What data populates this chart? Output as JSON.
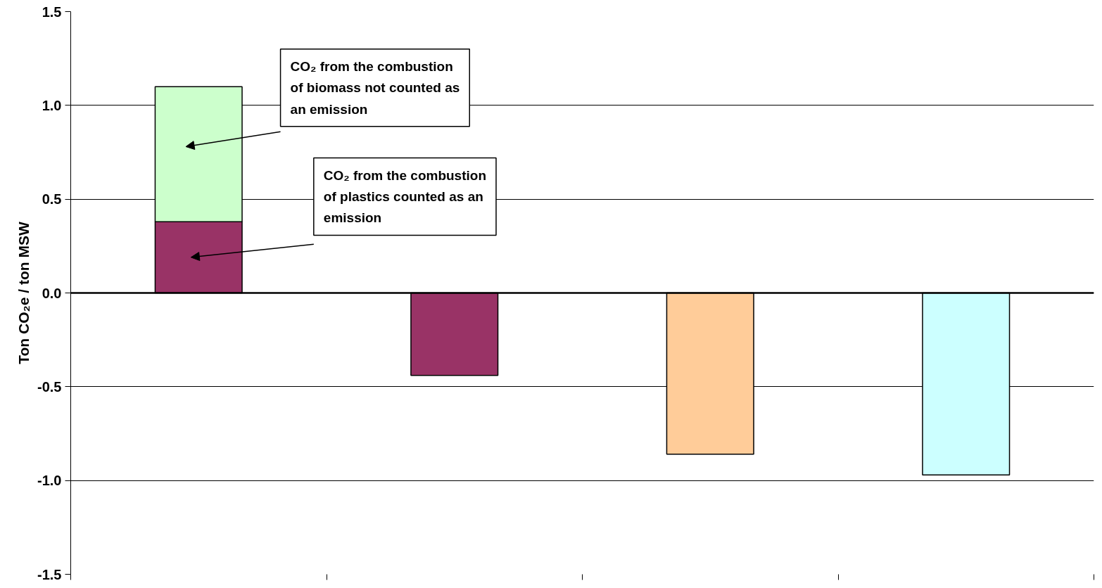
{
  "chart_data": {
    "type": "bar",
    "stacked": true,
    "ylabel": "Ton CO₂e / ton MSW",
    "categories": [
      null,
      null,
      null,
      null
    ],
    "series": [
      {
        "color": "#993366",
        "values": [
          0.38,
          -0.44,
          null,
          null
        ]
      },
      {
        "color": "#ccffcc",
        "values": [
          0.72,
          null,
          null,
          null
        ]
      },
      {
        "color": "#ffcc99",
        "values": [
          null,
          null,
          -0.86,
          null
        ]
      },
      {
        "color": "#ccffff",
        "values": [
          null,
          null,
          null,
          -0.97
        ]
      }
    ],
    "ylim": [
      -1.5,
      1.5
    ],
    "yticks": [
      {
        "value": -1.5,
        "label": "-1.5"
      },
      {
        "value": -1,
        "label": "-1.0"
      },
      {
        "value": -0.5,
        "label": "-0.5"
      },
      {
        "value": 0,
        "label": "0.0"
      },
      {
        "value": 0.5,
        "label": "0.5"
      },
      {
        "value": 1,
        "label": "1.0"
      },
      {
        "value": 1.5,
        "label": "1.5"
      }
    ],
    "grid": "y",
    "tick_labels": "y",
    "ref_lines": [
      {
        "axis": "y",
        "value": 0,
        "color": "#000000"
      }
    ],
    "annotations": [
      "CO₂ from the combustion of biomass not counted as an emission",
      "CO₂ from the combustion of plastics counted as an emission"
    ]
  }
}
